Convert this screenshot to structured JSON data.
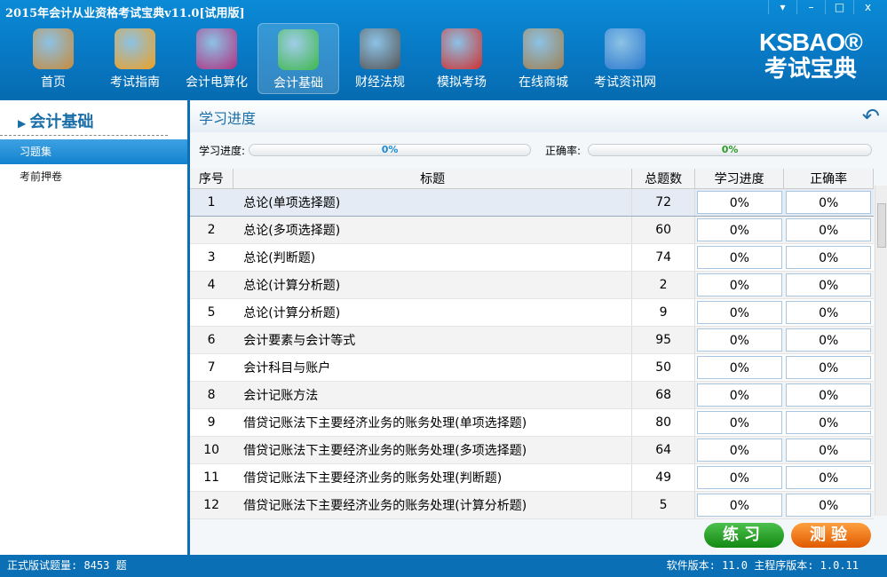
{
  "window": {
    "title": "2015年会计从业资格考试宝典v11.0[试用版]",
    "controls": [
      "▾",
      "–",
      "□",
      "x"
    ]
  },
  "nav": [
    {
      "label": "首页",
      "icon": "home-icon",
      "color": "#c88a3a"
    },
    {
      "label": "考试指南",
      "icon": "compass-icon",
      "color": "#f0a020"
    },
    {
      "label": "会计电算化",
      "icon": "monitor-icon",
      "color": "#b03080"
    },
    {
      "label": "会计基础",
      "icon": "chart-icon",
      "color": "#3cb84a",
      "active": true
    },
    {
      "label": "财经法规",
      "icon": "register-icon",
      "color": "#555"
    },
    {
      "label": "模拟考场",
      "icon": "clock-icon",
      "color": "#d03030"
    },
    {
      "label": "在线商城",
      "icon": "store-icon",
      "color": "#a08050"
    },
    {
      "label": "考试资讯网",
      "icon": "ie-icon",
      "color": "#2a7ad0"
    }
  ],
  "logo": {
    "en": "KSBAO®",
    "cn": "考试宝典"
  },
  "sidebar": {
    "title": "会计基础",
    "items": [
      "习题集",
      "考前押卷"
    ]
  },
  "main": {
    "title": "学习进度",
    "progress_label": "学习进度:",
    "progress_value": "0%",
    "accuracy_label": "正确率:",
    "accuracy_value": "0%",
    "columns": [
      "序号",
      "标题",
      "总题数",
      "学习进度",
      "正确率"
    ],
    "rows": [
      [
        "1",
        "总论(单项选择题)",
        "72",
        "0%",
        "0%"
      ],
      [
        "2",
        "总论(多项选择题)",
        "60",
        "0%",
        "0%"
      ],
      [
        "3",
        "总论(判断题)",
        "74",
        "0%",
        "0%"
      ],
      [
        "4",
        "总论(计算分析题)",
        "2",
        "0%",
        "0%"
      ],
      [
        "5",
        "总论(计算分析题)",
        "9",
        "0%",
        "0%"
      ],
      [
        "6",
        "会计要素与会计等式",
        "95",
        "0%",
        "0%"
      ],
      [
        "7",
        "会计科目与账户",
        "50",
        "0%",
        "0%"
      ],
      [
        "8",
        "会计记账方法",
        "68",
        "0%",
        "0%"
      ],
      [
        "9",
        "借贷记账法下主要经济业务的账务处理(单项选择题)",
        "80",
        "0%",
        "0%"
      ],
      [
        "10",
        "借贷记账法下主要经济业务的账务处理(多项选择题)",
        "64",
        "0%",
        "0%"
      ],
      [
        "11",
        "借贷记账法下主要经济业务的账务处理(判断题)",
        "49",
        "0%",
        "0%"
      ],
      [
        "12",
        "借贷记账法下主要经济业务的账务处理(计算分析题)",
        "5",
        "0%",
        "0%"
      ]
    ],
    "practice": "练习",
    "test": "测验"
  },
  "status": {
    "left": "正式版试题量: 8453 题",
    "right": "软件版本: 11.0 主程序版本: 1.0.11"
  }
}
